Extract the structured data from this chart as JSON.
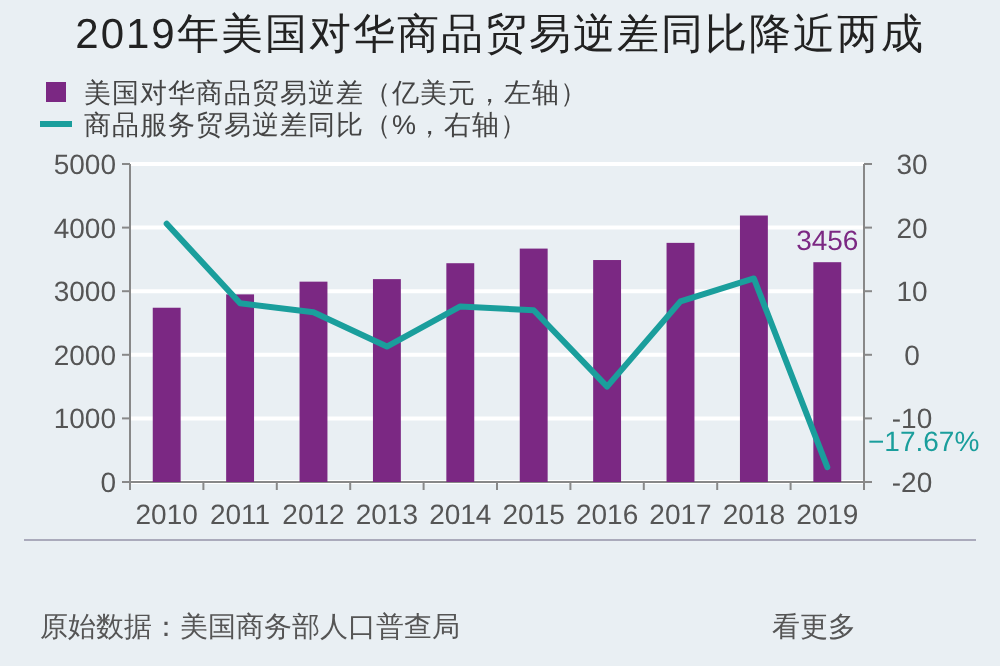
{
  "chart_data": {
    "type": "bar",
    "title": "2019年美国对华商品贸易逆差同比降近两成",
    "categories": [
      "2010",
      "2011",
      "2012",
      "2013",
      "2014",
      "2015",
      "2016",
      "2017",
      "2018",
      "2019"
    ],
    "series": [
      {
        "name": "美国对华商品贸易逆差（亿美元，左轴）",
        "color": "#7b2883",
        "values": [
          2740,
          2950,
          3150,
          3190,
          3440,
          3670,
          3490,
          3760,
          4190,
          3456
        ],
        "value_labels": [
          null,
          null,
          null,
          null,
          null,
          null,
          null,
          null,
          null,
          "3456"
        ]
      },
      {
        "name": "商品服务贸易逆差同比（%，右轴）",
        "type": "line",
        "axis": "y2",
        "color": "#1a9e9c",
        "values": [
          20.6,
          8.1,
          6.7,
          1.3,
          7.6,
          7.0,
          -5.0,
          8.4,
          12.0,
          -17.67
        ],
        "value_labels": [
          null,
          null,
          null,
          null,
          null,
          null,
          null,
          null,
          null,
          "−17.67%"
        ]
      }
    ],
    "ylim": [
      0,
      5000
    ],
    "yticks": [
      0,
      1000,
      2000,
      3000,
      4000,
      5000
    ],
    "y2lim": [
      -20,
      30
    ],
    "y2ticks": [
      -20,
      -10,
      0,
      10,
      20,
      30
    ],
    "grid": "y",
    "legend": "top left",
    "annotations": [
      "原始数据：美国商务部人口普查局",
      "看更多"
    ]
  }
}
